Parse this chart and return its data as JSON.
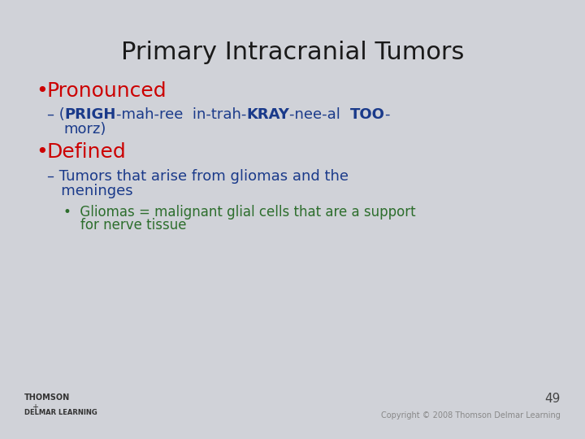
{
  "title": "Primary Intracranial Tumors",
  "title_color": "#1a1a1a",
  "title_fontsize": 22,
  "background_color": "#d0d2d8",
  "bullet1_text": "Pronounced",
  "bullet1_color": "#cc0000",
  "bullet1_fontsize": 18,
  "dash1_segments": [
    {
      "text": "– (",
      "bold": false
    },
    {
      "text": "PRIGH",
      "bold": true
    },
    {
      "text": "-mah-ree  in-trah-",
      "bold": false
    },
    {
      "text": "KRAY",
      "bold": true
    },
    {
      "text": "-nee-al  ",
      "bold": false
    },
    {
      "text": "TOO",
      "bold": true
    },
    {
      "text": "-",
      "bold": false
    }
  ],
  "dash1_line2": "morz)",
  "dash1_color": "#1a3a8a",
  "dash1_fontsize": 13,
  "bullet2_text": "Defined",
  "bullet2_color": "#cc0000",
  "bullet2_fontsize": 18,
  "dash2_line1": "– Tumors that arise from gliomas and the",
  "dash2_line2": "   meninges",
  "dash2_color": "#1a3a8a",
  "dash2_fontsize": 13,
  "sub_bullet_line1": "•  Gliomas = malignant glial cells that are a support",
  "sub_bullet_line2": "    for nerve tissue",
  "sub_bullet_color": "#2d6e2d",
  "sub_bullet_fontsize": 12,
  "page_number": "49",
  "page_number_color": "#444444",
  "copyright_text": "Copyright © 2008 Thomson Delmar Learning",
  "copyright_color": "#888888",
  "footer_thomson": "THOMSON",
  "footer_delmar": "DELMAR LEARNING",
  "footer_color": "#333333"
}
